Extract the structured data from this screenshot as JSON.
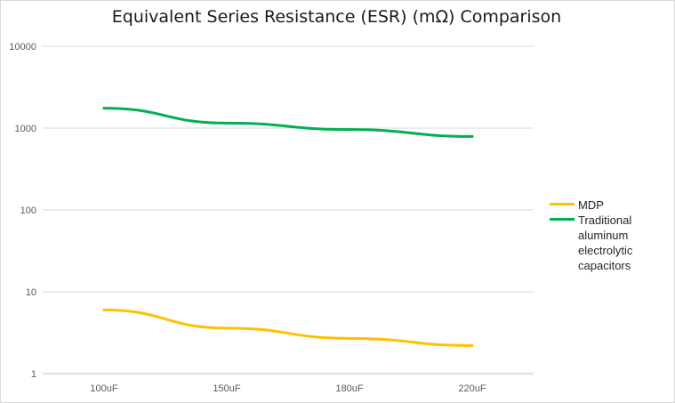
{
  "chart_data": {
    "type": "line",
    "title": "Equivalent Series Resistance (ESR) (mΩ) Comparison",
    "xlabel": "",
    "ylabel": "",
    "categories": [
      "100uF",
      "150uF",
      "180uF",
      "220uF"
    ],
    "y_scale": "log",
    "ylim": [
      1,
      10000
    ],
    "y_ticks": [
      "1",
      "10",
      "100",
      "1000",
      "10000"
    ],
    "grid": true,
    "legend_position": "right",
    "series": [
      {
        "name": "MDP",
        "color": "#ffc000",
        "values": [
          6,
          3.6,
          2.7,
          2.2
        ]
      },
      {
        "name": "Traditional aluminum electrolytic capacitors",
        "color": "#00b050",
        "values": [
          1750,
          1150,
          960,
          790
        ]
      }
    ]
  }
}
